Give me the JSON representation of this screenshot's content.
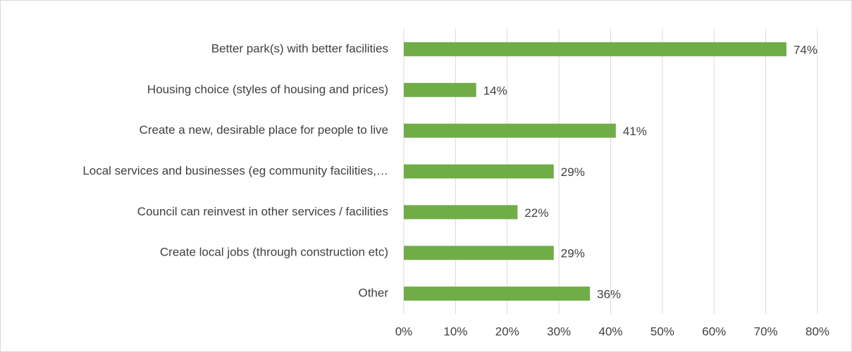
{
  "chart_data": {
    "type": "bar",
    "orientation": "horizontal",
    "categories": [
      "Better park(s) with better facilities",
      "Housing choice (styles of housing and prices)",
      "Create a new, desirable place for people to live",
      "Local services and businesses (eg community facilities,…",
      "Council can reinvest in other services / facilities",
      "Create local jobs (through construction etc)",
      "Other"
    ],
    "values": [
      74,
      14,
      41,
      29,
      22,
      29,
      36
    ],
    "value_labels": [
      "74%",
      "14%",
      "41%",
      "29%",
      "22%",
      "29%",
      "36%"
    ],
    "color": "#70ad47",
    "xlim": [
      0,
      80
    ],
    "xticks": [
      {
        "value": 0,
        "label": "0%"
      },
      {
        "value": 10,
        "label": "10%"
      },
      {
        "value": 20,
        "label": "20%"
      },
      {
        "value": 30,
        "label": "30%"
      },
      {
        "value": 40,
        "label": "40%"
      },
      {
        "value": 50,
        "label": "50%"
      },
      {
        "value": 60,
        "label": "60%"
      },
      {
        "value": 70,
        "label": "70%"
      },
      {
        "value": 80,
        "label": "80%"
      }
    ],
    "grid": true
  }
}
